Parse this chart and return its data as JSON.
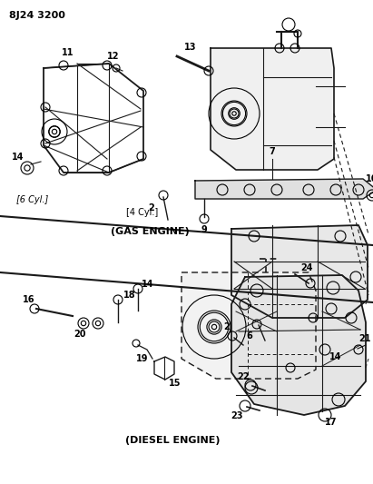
{
  "title": "8J24 3200",
  "bg_color": "#ffffff",
  "line_color": "#1a1a1a",
  "text_color": "#000000",
  "label_gas_engine": "(GAS ENGINE)",
  "label_diesel_engine": "(DIESEL ENGINE)",
  "label_6cyl": "[6 Cyl.]",
  "label_4cyl": "[4 Cyl.]",
  "fig_width": 4.11,
  "fig_height": 5.33,
  "dpi": 100
}
